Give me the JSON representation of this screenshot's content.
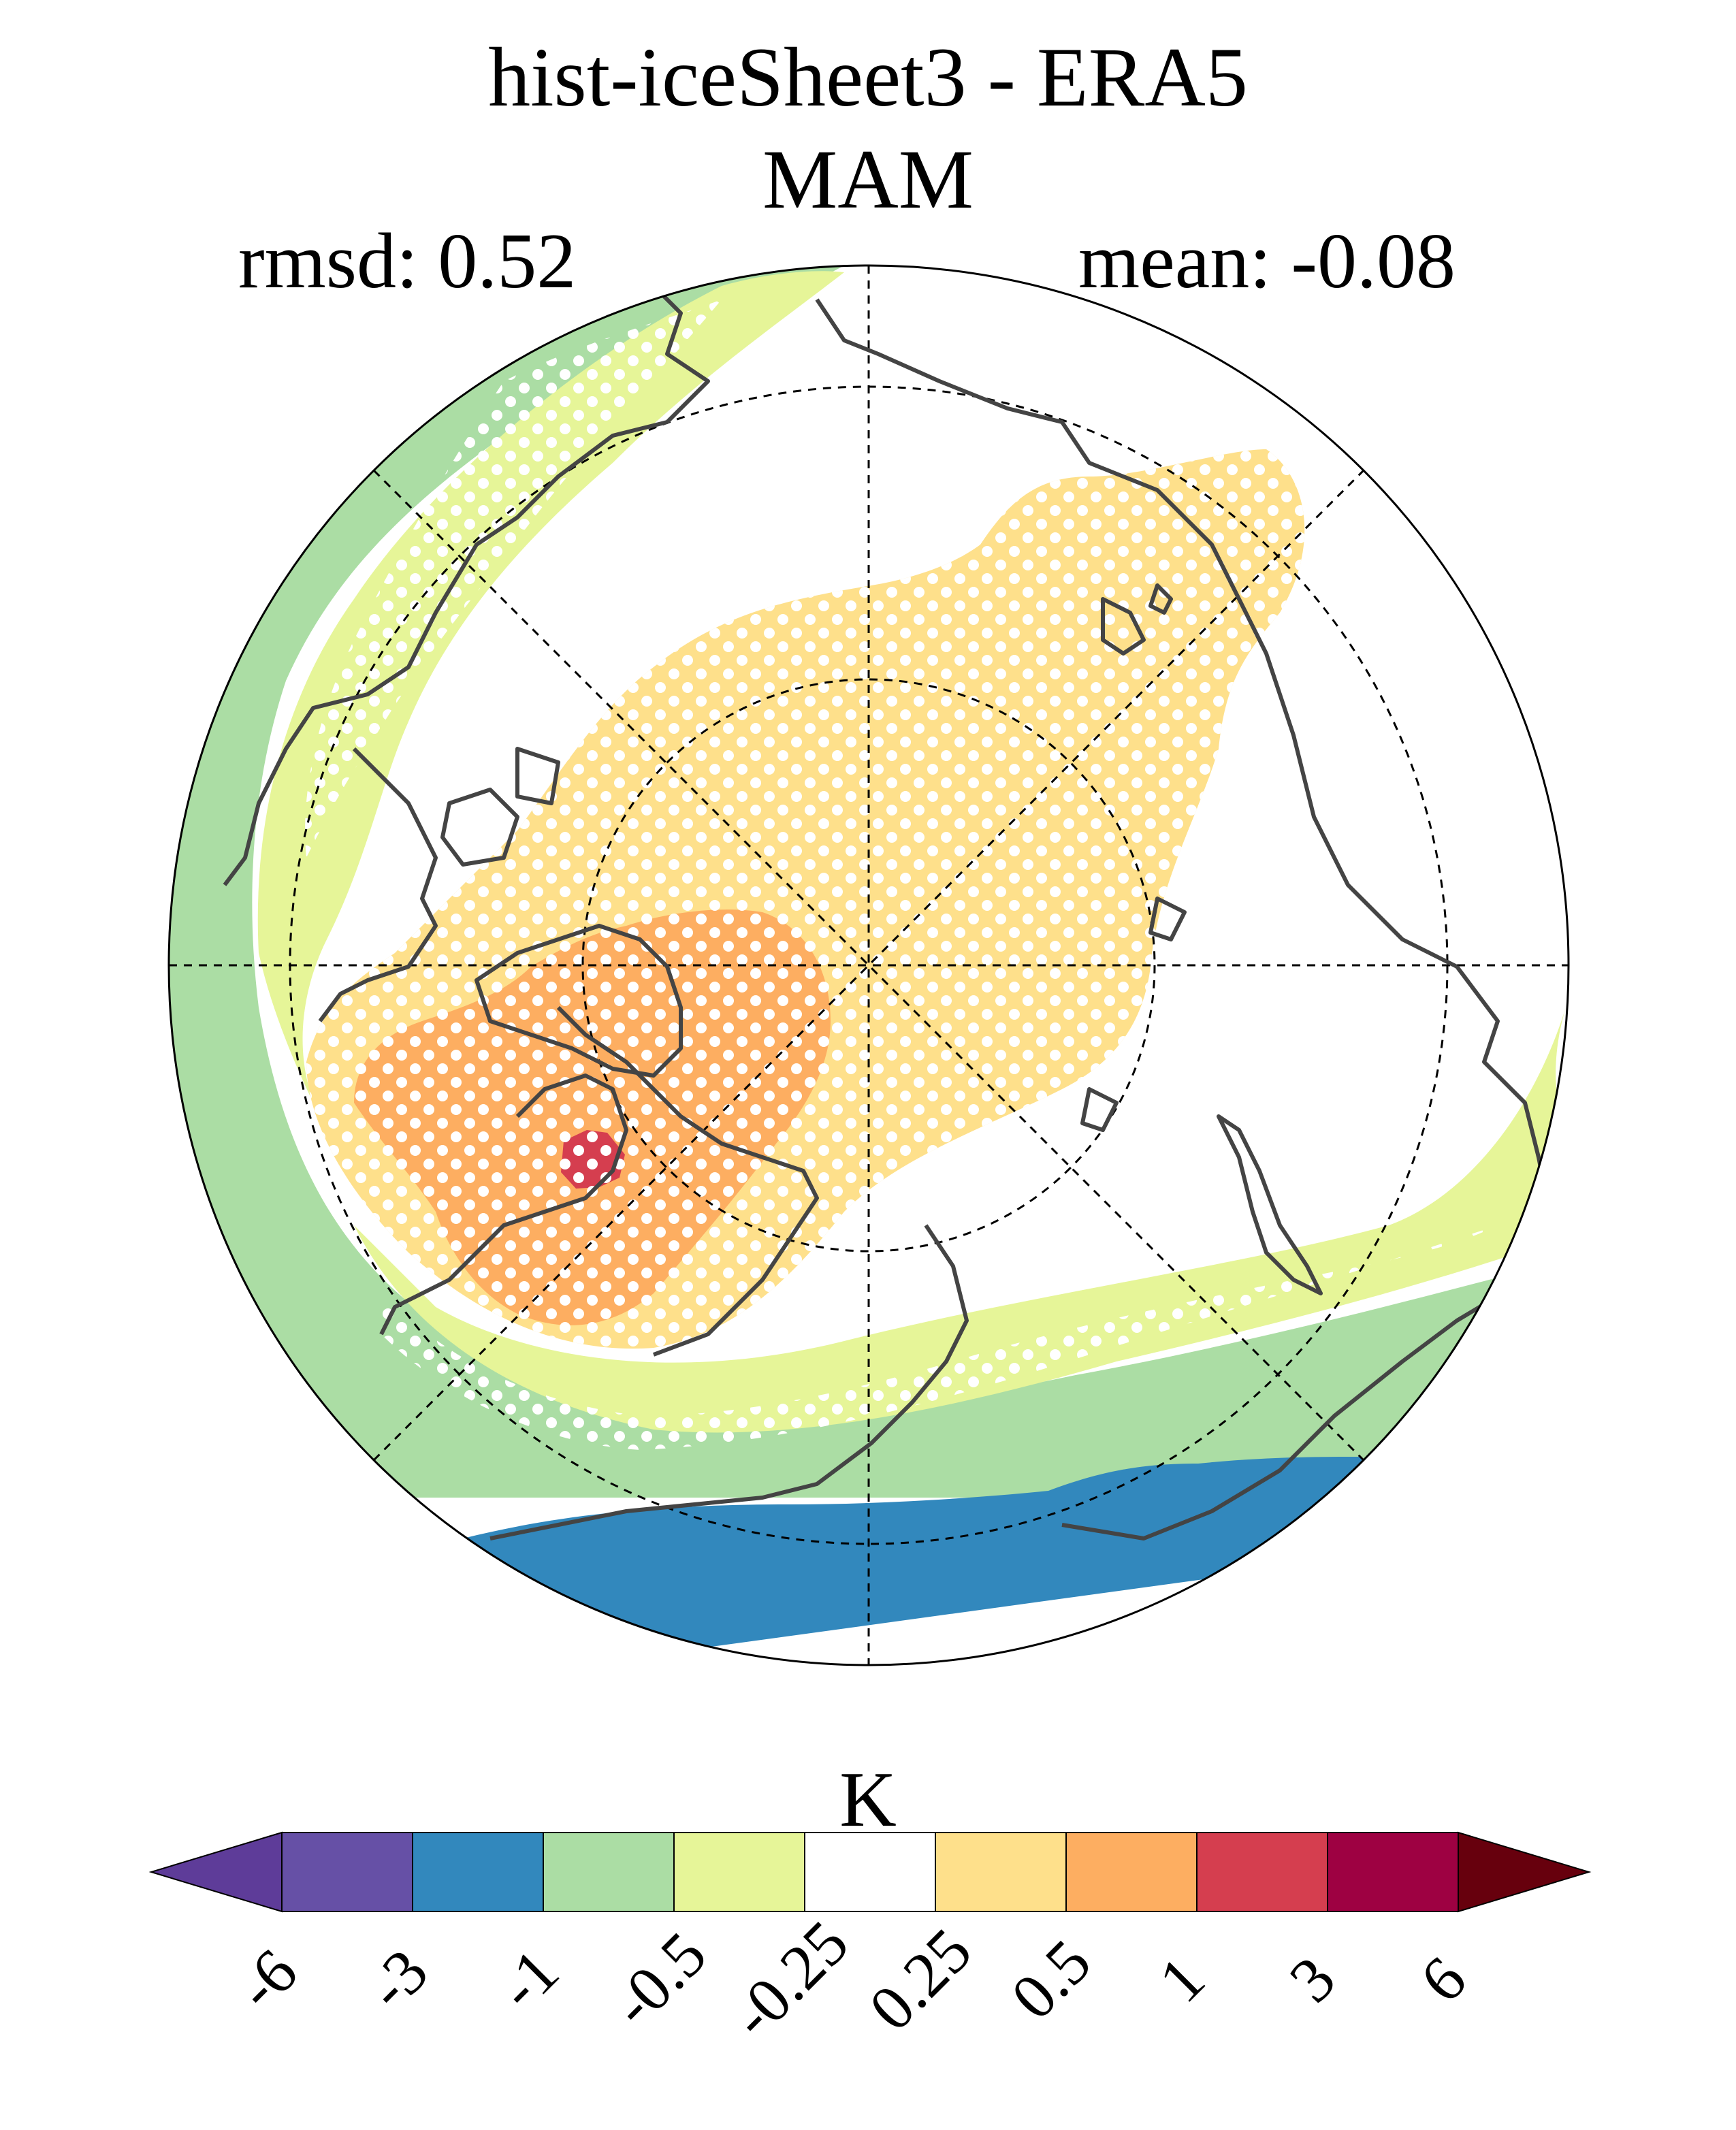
{
  "title": "hist-iceSheet3 - ERA5",
  "subtitle": "MAM",
  "stats": {
    "rmsd_label": "rmsd: 0.52",
    "mean_label": "mean: -0.08",
    "rmsd": 0.52,
    "mean": -0.08
  },
  "colorbar": {
    "unit": "K",
    "ticks": [
      "-6",
      "-3",
      "-1",
      "-0.5",
      "-0.25",
      "0.25",
      "0.5",
      "1",
      "3",
      "6"
    ],
    "bins": [
      {
        "range": "< -6",
        "color": "#5e3c99"
      },
      {
        "range": "-6 to -3",
        "color": "#6650a6"
      },
      {
        "range": "-3 to -1",
        "color": "#3288bd"
      },
      {
        "range": "-1 to -0.5",
        "color": "#abdda4"
      },
      {
        "range": "-0.5 to -0.25",
        "color": "#e6f598"
      },
      {
        "range": "-0.25 to 0.25",
        "color": "#ffffff"
      },
      {
        "range": "0.25 to 0.5",
        "color": "#fee08b"
      },
      {
        "range": "0.5 to 1",
        "color": "#fdae61"
      },
      {
        "range": "1 to 3",
        "color": "#d53e4f"
      },
      {
        "range": "3 to 6",
        "color": "#9e0142"
      },
      {
        "range": "> 6",
        "color": "#67000d"
      }
    ]
  },
  "map": {
    "projection": "north polar stereographic",
    "field": "surface temperature difference (K)",
    "stippling": "white dots mark significant differences",
    "features": [
      "coastlines",
      "latitude circles",
      "meridians every 45°"
    ],
    "colors": {
      "land_outline": "#444444",
      "graticule": "#000000"
    }
  }
}
